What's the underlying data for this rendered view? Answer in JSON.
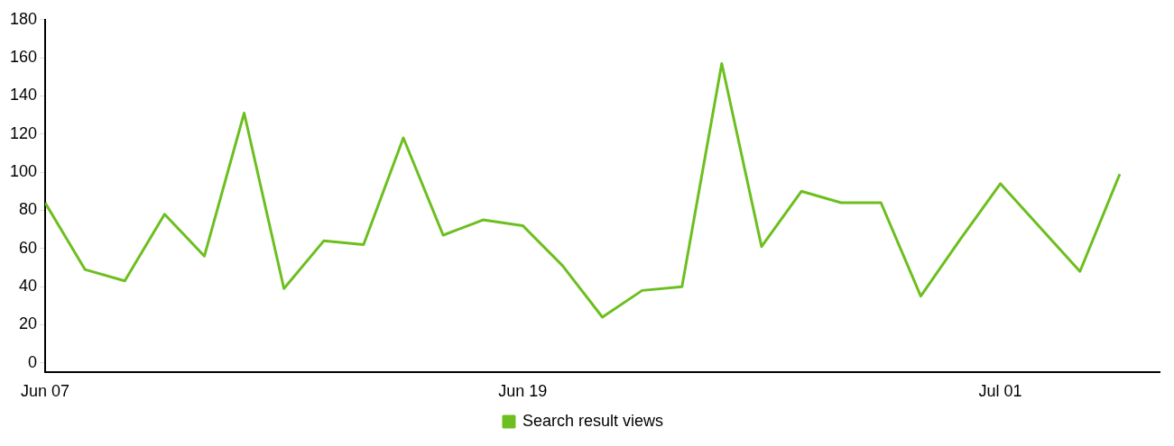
{
  "chart_data": {
    "type": "line",
    "x": [
      "--06-07",
      "--06-08",
      "--06-09",
      "--06-10",
      "--06-11",
      "--06-12",
      "--06-13",
      "--06-14",
      "--06-15",
      "--06-16",
      "--06-17",
      "--06-18",
      "--06-19",
      "--06-20",
      "--06-21",
      "--06-22",
      "--06-23",
      "--06-24",
      "--06-25",
      "--06-26",
      "--06-27",
      "--06-28",
      "--06-29",
      "--06-30",
      "--07-01",
      "--07-02",
      "--07-03",
      "--07-04"
    ],
    "series": [
      {
        "name": "Search result views",
        "color": "#6cbf1f",
        "values": [
          84,
          49,
          43,
          78,
          56,
          131,
          39,
          64,
          62,
          118,
          67,
          75,
          72,
          51,
          24,
          38,
          40,
          157,
          61,
          90,
          84,
          84,
          35,
          65,
          94,
          71,
          48,
          99
        ]
      }
    ],
    "xlim": [
      "--06-07",
      "--07-05"
    ],
    "xticks": [
      {
        "value": "--06-07",
        "label": "Jun 07"
      },
      {
        "value": "--06-19",
        "label": "Jun 19"
      },
      {
        "value": "--07-01",
        "label": "Jul 01"
      }
    ],
    "ylim": [
      -5,
      180
    ],
    "yticks": [
      0,
      20,
      40,
      60,
      80,
      100,
      120,
      140,
      160,
      180
    ],
    "grid": false,
    "legend": "bottom",
    "marker": "none",
    "line_style": "solid"
  }
}
